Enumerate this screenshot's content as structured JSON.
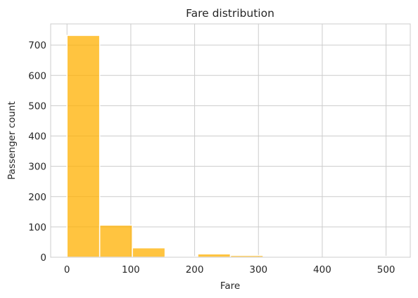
{
  "chart_data": {
    "type": "bar",
    "title": "Fare distribution",
    "xlabel": "Fare",
    "ylabel": "Passenger count",
    "xlim": [
      -25.6,
      537.9
    ],
    "ylim": [
      0,
      770
    ],
    "xticks": [
      0,
      100,
      200,
      300,
      400,
      500
    ],
    "yticks": [
      0,
      100,
      200,
      300,
      400,
      500,
      600,
      700
    ],
    "grid": true,
    "bar_color": "#FFB000",
    "bins": [
      {
        "x0": 0.0,
        "x1": 51.23,
        "count": 732
      },
      {
        "x0": 51.23,
        "x1": 102.47,
        "count": 106
      },
      {
        "x0": 102.47,
        "x1": 153.7,
        "count": 31
      },
      {
        "x0": 153.7,
        "x1": 204.93,
        "count": 2
      },
      {
        "x0": 204.93,
        "x1": 256.16,
        "count": 11
      },
      {
        "x0": 256.16,
        "x1": 307.4,
        "count": 6
      },
      {
        "x0": 307.4,
        "x1": 358.63,
        "count": 0
      },
      {
        "x0": 358.63,
        "x1": 409.86,
        "count": 0
      },
      {
        "x0": 409.86,
        "x1": 461.1,
        "count": 0
      },
      {
        "x0": 461.1,
        "x1": 512.33,
        "count": 3
      }
    ]
  }
}
